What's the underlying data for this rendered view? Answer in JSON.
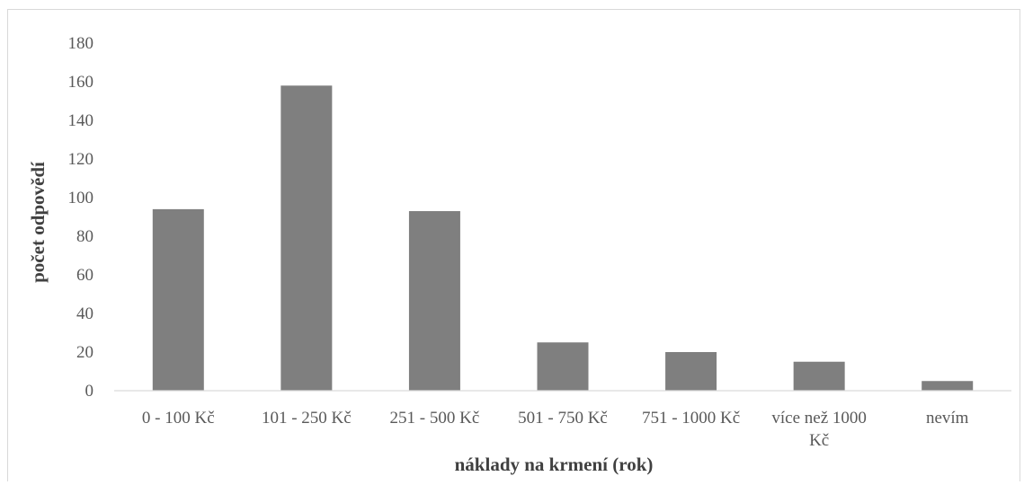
{
  "chart_data": {
    "type": "bar",
    "title": "",
    "xlabel": "náklady na krmení (rok)",
    "ylabel": "počet odpovědí",
    "categories": [
      [
        "0 - 100 Kč"
      ],
      [
        "101 - 250 Kč"
      ],
      [
        "251 - 500 Kč"
      ],
      [
        "501 - 750 Kč"
      ],
      [
        "751 - 1000 Kč"
      ],
      [
        "více než 1000",
        "Kč"
      ],
      [
        "nevím"
      ]
    ],
    "values": [
      94,
      158,
      93,
      25,
      20,
      15,
      5
    ],
    "ylim": [
      0,
      180
    ],
    "yticks": [
      0,
      20,
      40,
      60,
      80,
      100,
      120,
      140,
      160,
      180
    ],
    "grid": false,
    "legend": "none",
    "bar_color": "#7f7f7f",
    "axis_color": "#d9d9d9"
  }
}
